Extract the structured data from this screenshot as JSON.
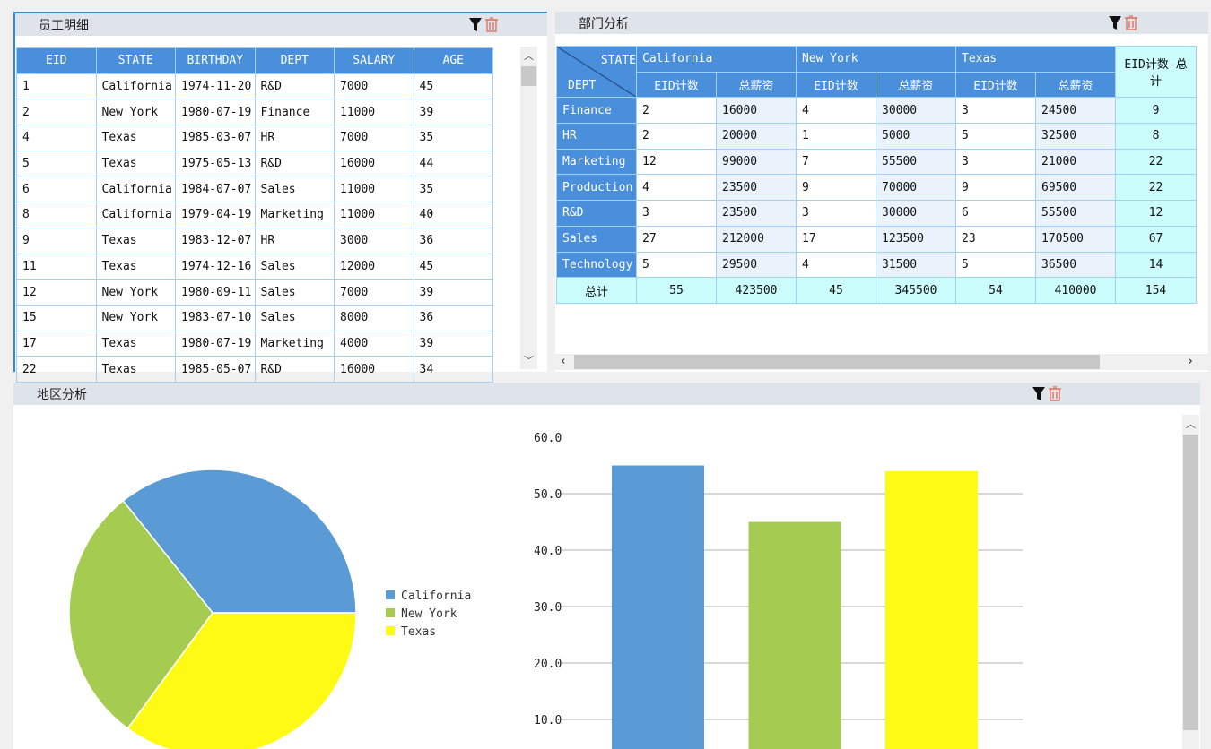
{
  "panels": {
    "employee": "员工明细",
    "dept": "部门分析",
    "region": "地区分析"
  },
  "icons": [
    "filter-icon",
    "delete-icon"
  ],
  "employee_table": {
    "headers": [
      "EID",
      "STATE",
      "BIRTHDAY",
      "DEPT",
      "SALARY",
      "AGE"
    ],
    "rows": [
      [
        "1",
        "California",
        "1974-11-20",
        "R&D",
        "7000",
        "45"
      ],
      [
        "2",
        "New York",
        "1980-07-19",
        "Finance",
        "11000",
        "39"
      ],
      [
        "4",
        "Texas",
        "1985-03-07",
        "HR",
        "7000",
        "35"
      ],
      [
        "5",
        "Texas",
        "1975-05-13",
        "R&D",
        "16000",
        "44"
      ],
      [
        "6",
        "California",
        "1984-07-07",
        "Sales",
        "11000",
        "35"
      ],
      [
        "8",
        "California",
        "1979-04-19",
        "Marketing",
        "11000",
        "40"
      ],
      [
        "9",
        "Texas",
        "1983-12-07",
        "HR",
        "3000",
        "36"
      ],
      [
        "11",
        "Texas",
        "1974-12-16",
        "Sales",
        "12000",
        "45"
      ],
      [
        "12",
        "New York",
        "1980-09-11",
        "Sales",
        "7000",
        "39"
      ],
      [
        "15",
        "New York",
        "1983-07-10",
        "Sales",
        "8000",
        "36"
      ],
      [
        "17",
        "Texas",
        "1980-07-19",
        "Marketing",
        "4000",
        "39"
      ],
      [
        "22",
        "Texas",
        "1985-05-07",
        "R&D",
        "16000",
        "34"
      ]
    ]
  },
  "pivot": {
    "corner_top": "STATE",
    "corner_bottom": "DEPT",
    "states": [
      "California",
      "New York",
      "Texas"
    ],
    "measures": [
      "EID计数",
      "总薪资"
    ],
    "total_header": "EID计数-总计",
    "rows": [
      [
        "Finance",
        "2",
        "16000",
        "4",
        "30000",
        "3",
        "24500",
        "9"
      ],
      [
        "HR",
        "2",
        "20000",
        "1",
        "5000",
        "5",
        "32500",
        "8"
      ],
      [
        "Marketing",
        "12",
        "99000",
        "7",
        "55500",
        "3",
        "21000",
        "22"
      ],
      [
        "Production",
        "4",
        "23500",
        "9",
        "70000",
        "9",
        "69500",
        "22"
      ],
      [
        "R&D",
        "3",
        "23500",
        "3",
        "30000",
        "6",
        "55500",
        "12"
      ],
      [
        "Sales",
        "27",
        "212000",
        "17",
        "123500",
        "23",
        "170500",
        "67"
      ],
      [
        "Technology",
        "5",
        "29500",
        "4",
        "31500",
        "5",
        "36500",
        "14"
      ]
    ],
    "total_row": [
      "总计",
      "55",
      "423500",
      "45",
      "345500",
      "54",
      "410000",
      "154"
    ]
  },
  "chart_data": [
    {
      "type": "pie",
      "categories": [
        "California",
        "New York",
        "Texas"
      ],
      "values": [
        55,
        45,
        54
      ],
      "colors": [
        "#5b9bd5",
        "#a5cb51",
        "#fffa14"
      ],
      "legend": "right"
    },
    {
      "type": "bar",
      "categories": [
        "California",
        "New York",
        "Texas"
      ],
      "values": [
        55,
        45,
        54
      ],
      "colors": [
        "#5b9bd5",
        "#a5cb51",
        "#fffa14"
      ],
      "yticks": [
        "10.0",
        "20.0",
        "30.0",
        "40.0",
        "50.0",
        "60.0"
      ],
      "ylim": [
        0,
        60
      ],
      "grid": true
    }
  ]
}
